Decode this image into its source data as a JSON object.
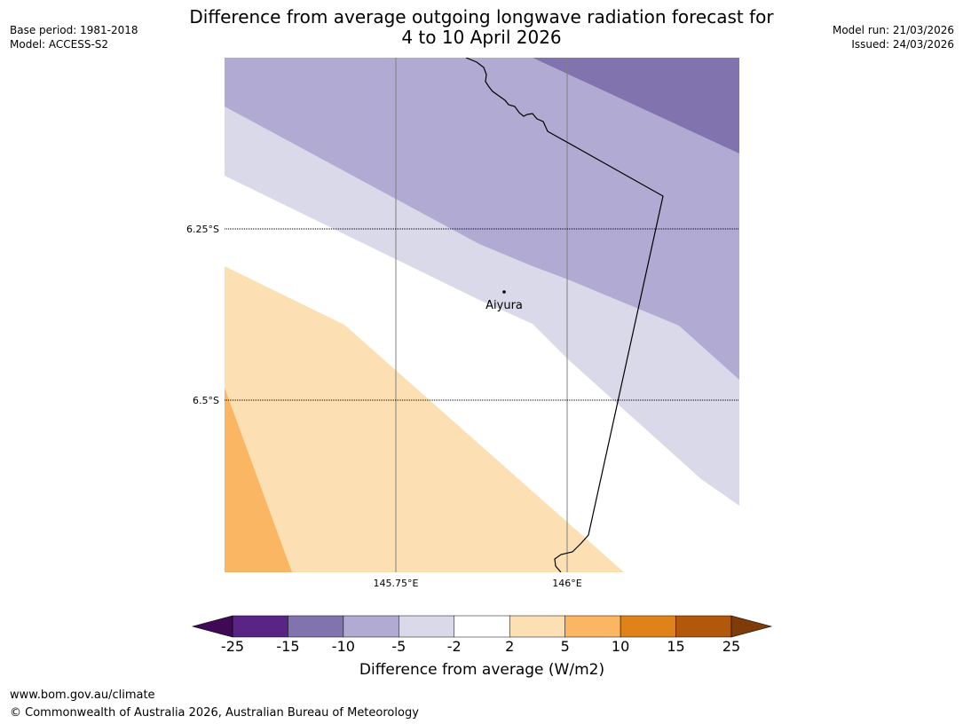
{
  "header": {
    "base_period": "Base period: 1981-2018",
    "model": "Model: ACCESS-S2",
    "title_line1": "Difference from average outgoing longwave radiation forecast for",
    "title_line2": "4 to 10 April 2026",
    "model_run": "Model run: 21/03/2026",
    "issued": "Issued: 24/03/2026"
  },
  "map": {
    "lat_labels": [
      "6.25°S",
      "6.5°S"
    ],
    "lon_labels": [
      "145.75°E",
      "146°E"
    ],
    "place": "Aiyura",
    "colors": {
      "neg15_10": "#8174ae",
      "neg10_5": "#b1aad2",
      "neg5_2": "#d9d9ea",
      "pos2_5": "#fcdfb3",
      "pos5_10": "#fab662",
      "border": "#000000",
      "gridline": "#808080"
    }
  },
  "colorbar": {
    "ticks": [
      "-25",
      "-15",
      "-10",
      "-5",
      "-2",
      "2",
      "5",
      "10",
      "15",
      "25"
    ],
    "colors": [
      "#5a2487",
      "#8174ae",
      "#b1aad2",
      "#d9d9ea",
      "#ffffff",
      "#fcdfb3",
      "#fab662",
      "#e0821a",
      "#b2580a"
    ],
    "under_color": "#3f0a55",
    "over_color": "#7f3b08",
    "label": "Difference from average (W/m2)"
  },
  "footer": {
    "url": "www.bom.gov.au/climate",
    "copyright": "© Commonwealth of Australia 2026, Australian Bureau of Meteorology"
  }
}
